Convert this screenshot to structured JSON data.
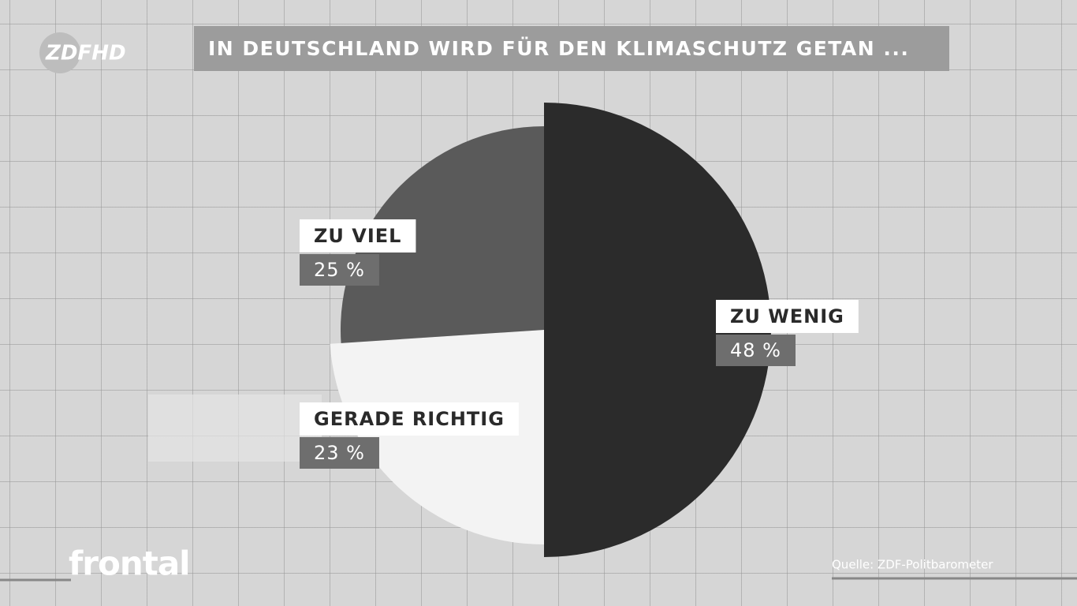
{
  "channel_logo": "ZDFHD",
  "program_logo": "frontal",
  "chart_data": {
    "type": "pie",
    "title": "IN DEUTSCHLAND WIRD FÜR DEN KLIMASCHUTZ GETAN ...",
    "categories": [
      "ZU WENIG",
      "GERADE RICHTIG",
      "ZU VIEL"
    ],
    "values": [
      48,
      23,
      25
    ],
    "value_labels": [
      "48 %",
      "23 %",
      "25 %"
    ],
    "colors": [
      "#2b2b2b",
      "#f3f3f3",
      "#5a5a5a"
    ],
    "source": "Quelle: ZDF-Politbarometer"
  }
}
